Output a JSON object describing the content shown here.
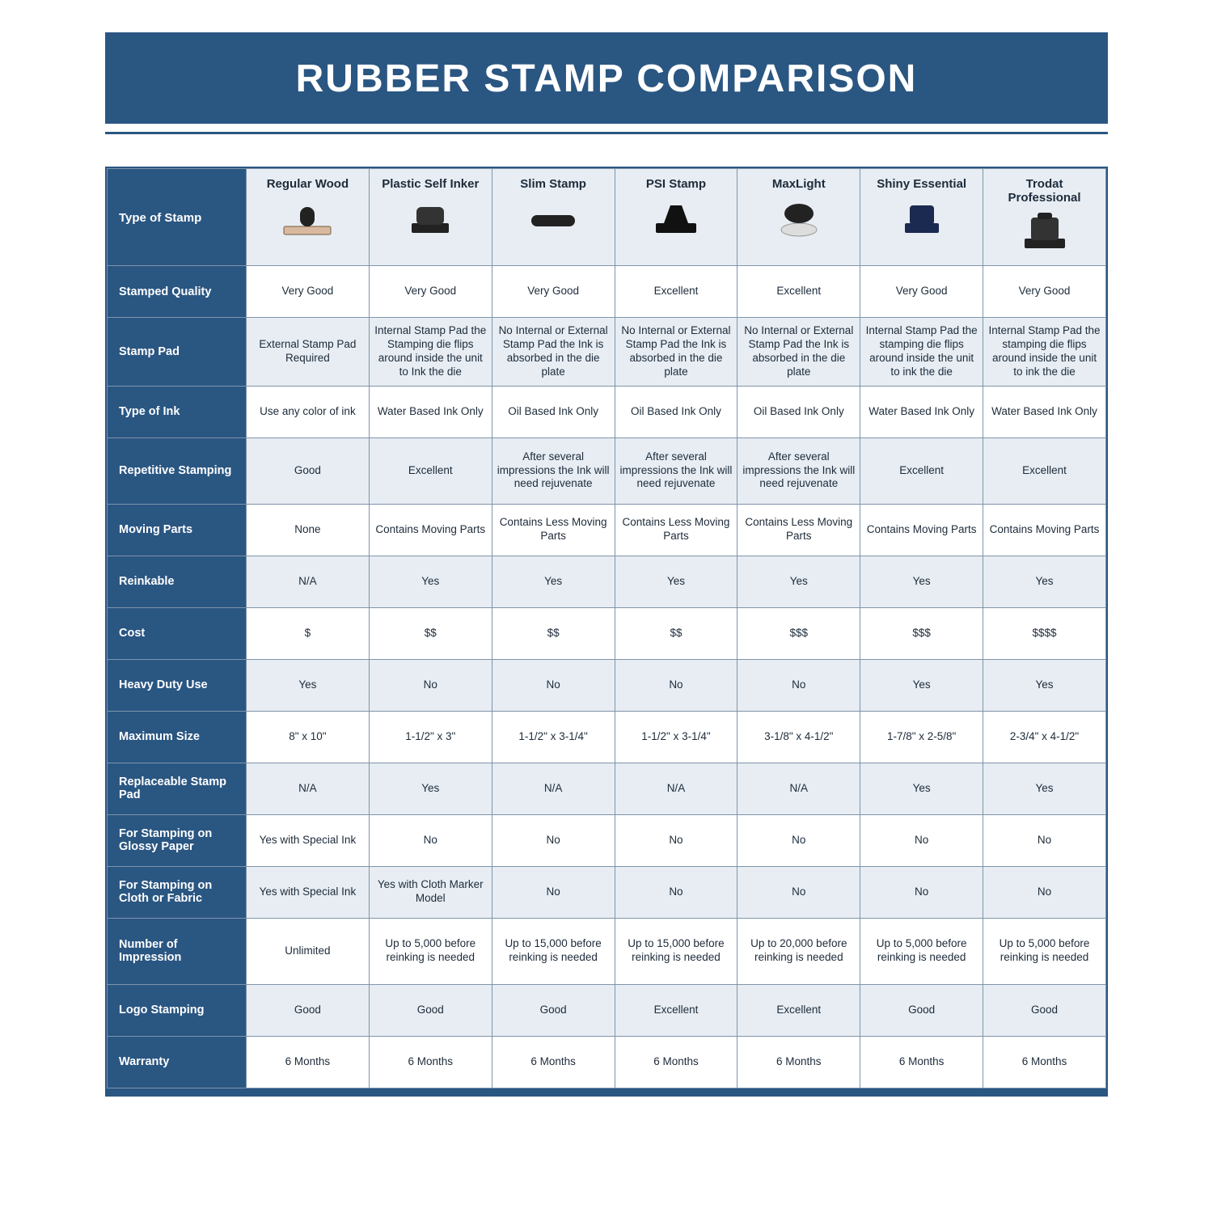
{
  "title": "RUBBER STAMP COMPARISON",
  "colors": {
    "brand": "#2a5682",
    "shade": "#e7edf3",
    "border": "#7f94aa",
    "text": "#1d2b3a",
    "white": "#ffffff"
  },
  "columns": [
    "Regular Wood",
    "Plastic Self Inker",
    "Slim Stamp",
    "PSI Stamp",
    "MaxLight",
    "Shiny Essential",
    "Trodat Professional"
  ],
  "row_label_header": "Type of Stamp",
  "rows": [
    {
      "label": "Stamped Quality",
      "shade": false,
      "tall": false,
      "cells": [
        "Very Good",
        "Very Good",
        "Very Good",
        "Excellent",
        "Excellent",
        "Very Good",
        "Very Good"
      ]
    },
    {
      "label": "Stamp Pad",
      "shade": true,
      "tall": true,
      "cells": [
        "External Stamp Pad Required",
        "Internal Stamp Pad the Stamping die flips around inside the unit to Ink the die",
        "No Internal or External Stamp Pad the Ink is absorbed in the die plate",
        "No Internal or External Stamp Pad the Ink is absorbed in the die plate",
        "No Internal or External Stamp Pad the Ink is absorbed in the die plate",
        "Internal Stamp Pad the stamping die flips around inside the unit to ink the die",
        "Internal Stamp Pad the stamping die flips around inside the unit to ink the die"
      ]
    },
    {
      "label": "Type of Ink",
      "shade": false,
      "tall": false,
      "cells": [
        "Use any color of ink",
        "Water Based Ink Only",
        "Oil Based Ink Only",
        "Oil Based Ink Only",
        "Oil Based Ink Only",
        "Water Based Ink Only",
        "Water Based Ink Only"
      ]
    },
    {
      "label": "Repetitive Stamping",
      "shade": true,
      "tall": true,
      "cells": [
        "Good",
        "Excellent",
        "After several impressions the Ink will need rejuvenate",
        "After several impressions the Ink will need rejuvenate",
        "After several impressions the Ink will need rejuvenate",
        "Excellent",
        "Excellent"
      ]
    },
    {
      "label": "Moving Parts",
      "shade": false,
      "tall": false,
      "cells": [
        "None",
        "Contains Moving Parts",
        "Contains Less Moving Parts",
        "Contains Less Moving Parts",
        "Contains Less Moving Parts",
        "Contains Moving Parts",
        "Contains Moving Parts"
      ]
    },
    {
      "label": "Reinkable",
      "shade": true,
      "tall": false,
      "cells": [
        "N/A",
        "Yes",
        "Yes",
        "Yes",
        "Yes",
        "Yes",
        "Yes"
      ]
    },
    {
      "label": "Cost",
      "shade": false,
      "tall": false,
      "cells": [
        "$",
        "$$",
        "$$",
        "$$",
        "$$$",
        "$$$",
        "$$$$"
      ]
    },
    {
      "label": "Heavy Duty Use",
      "shade": true,
      "tall": false,
      "cells": [
        "Yes",
        "No",
        "No",
        "No",
        "No",
        "Yes",
        "Yes"
      ]
    },
    {
      "label": "Maximum Size",
      "shade": false,
      "tall": false,
      "cells": [
        "8\" x 10\"",
        "1-1/2\" x 3\"",
        "1-1/2\" x 3-1/4\"",
        "1-1/2\" x 3-1/4\"",
        "3-1/8\" x 4-1/2\"",
        "1-7/8\" x 2-5/8\"",
        "2-3/4\" x 4-1/2\""
      ]
    },
    {
      "label": "Replaceable Stamp Pad",
      "shade": true,
      "tall": false,
      "cells": [
        "N/A",
        "Yes",
        "N/A",
        "N/A",
        "N/A",
        "Yes",
        "Yes"
      ]
    },
    {
      "label": "For Stamping on Glossy Paper",
      "shade": false,
      "tall": false,
      "cells": [
        "Yes with Special Ink",
        "No",
        "No",
        "No",
        "No",
        "No",
        "No"
      ]
    },
    {
      "label": "For Stamping on Cloth or Fabric",
      "shade": true,
      "tall": false,
      "cells": [
        "Yes with Special Ink",
        "Yes with Cloth Marker Model",
        "No",
        "No",
        "No",
        "No",
        "No"
      ]
    },
    {
      "label": "Number of Impression",
      "shade": false,
      "tall": true,
      "cells": [
        "Unlimited",
        "Up to 5,000 before reinking is needed",
        "Up to 15,000 before reinking is needed",
        "Up to 15,000 before reinking is needed",
        "Up to 20,000 before reinking is needed",
        "Up to 5,000 before reinking is needed",
        "Up to 5,000 before reinking is needed"
      ]
    },
    {
      "label": "Logo Stamping",
      "shade": true,
      "tall": false,
      "cells": [
        "Good",
        "Good",
        "Good",
        "Excellent",
        "Excellent",
        "Good",
        "Good"
      ]
    },
    {
      "label": "Warranty",
      "shade": false,
      "tall": false,
      "cells": [
        "6 Months",
        "6 Months",
        "6 Months",
        "6 Months",
        "6 Months",
        "6 Months",
        "6 Months"
      ]
    }
  ]
}
